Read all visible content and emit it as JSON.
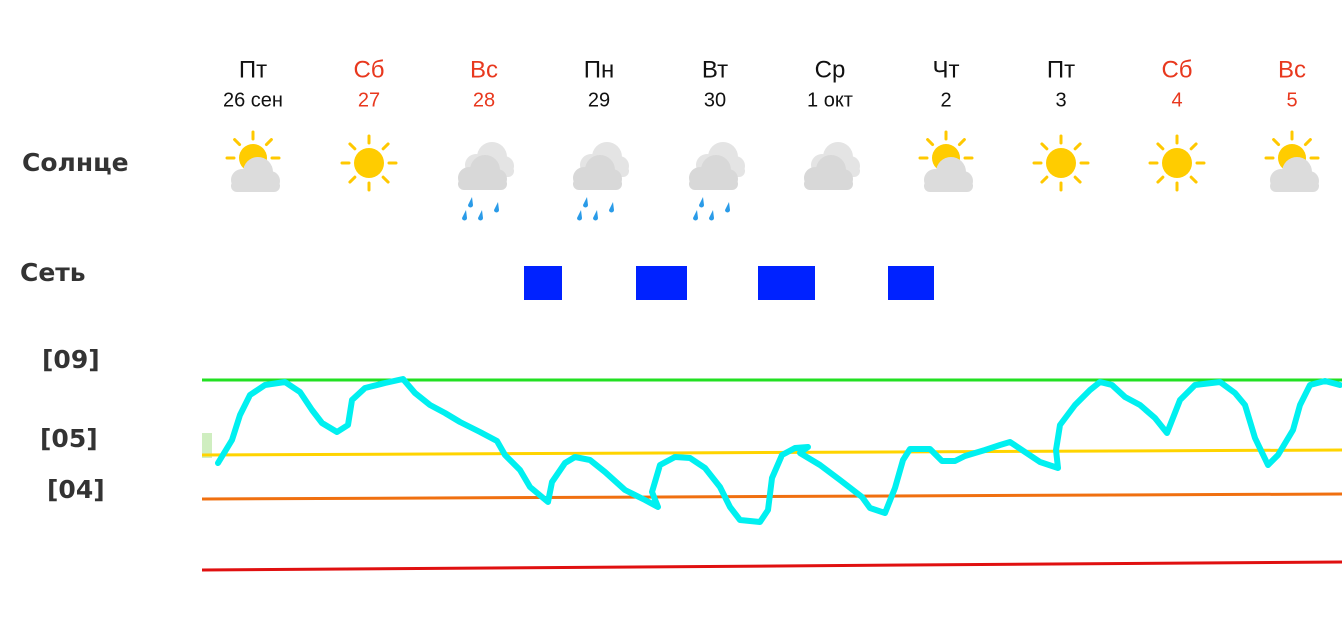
{
  "row_labels": [
    "Солнце",
    "Сеть",
    "[09]",
    "[05]",
    "[04]"
  ],
  "days": [
    {
      "weekday": "Пт",
      "date": "26 сен",
      "weekend": false,
      "icon": "partly-cloudy"
    },
    {
      "weekday": "Сб",
      "date": "27",
      "weekend": true,
      "icon": "sun"
    },
    {
      "weekday": "Вс",
      "date": "28",
      "weekend": true,
      "icon": "rain"
    },
    {
      "weekday": "Пн",
      "date": "29",
      "weekend": false,
      "icon": "rain"
    },
    {
      "weekday": "Вт",
      "date": "30",
      "weekend": false,
      "icon": "rain"
    },
    {
      "weekday": "Ср",
      "date": "1 окт",
      "weekend": false,
      "icon": "cloud"
    },
    {
      "weekday": "Чт",
      "date": "2",
      "weekend": false,
      "icon": "partly-cloudy"
    },
    {
      "weekday": "Пт",
      "date": "3",
      "weekend": false,
      "icon": "sun"
    },
    {
      "weekday": "Сб",
      "date": "4",
      "weekend": true,
      "icon": "sun"
    },
    {
      "weekday": "Вс",
      "date": "5",
      "weekend": true,
      "icon": "partly-cloudy"
    }
  ]
}
